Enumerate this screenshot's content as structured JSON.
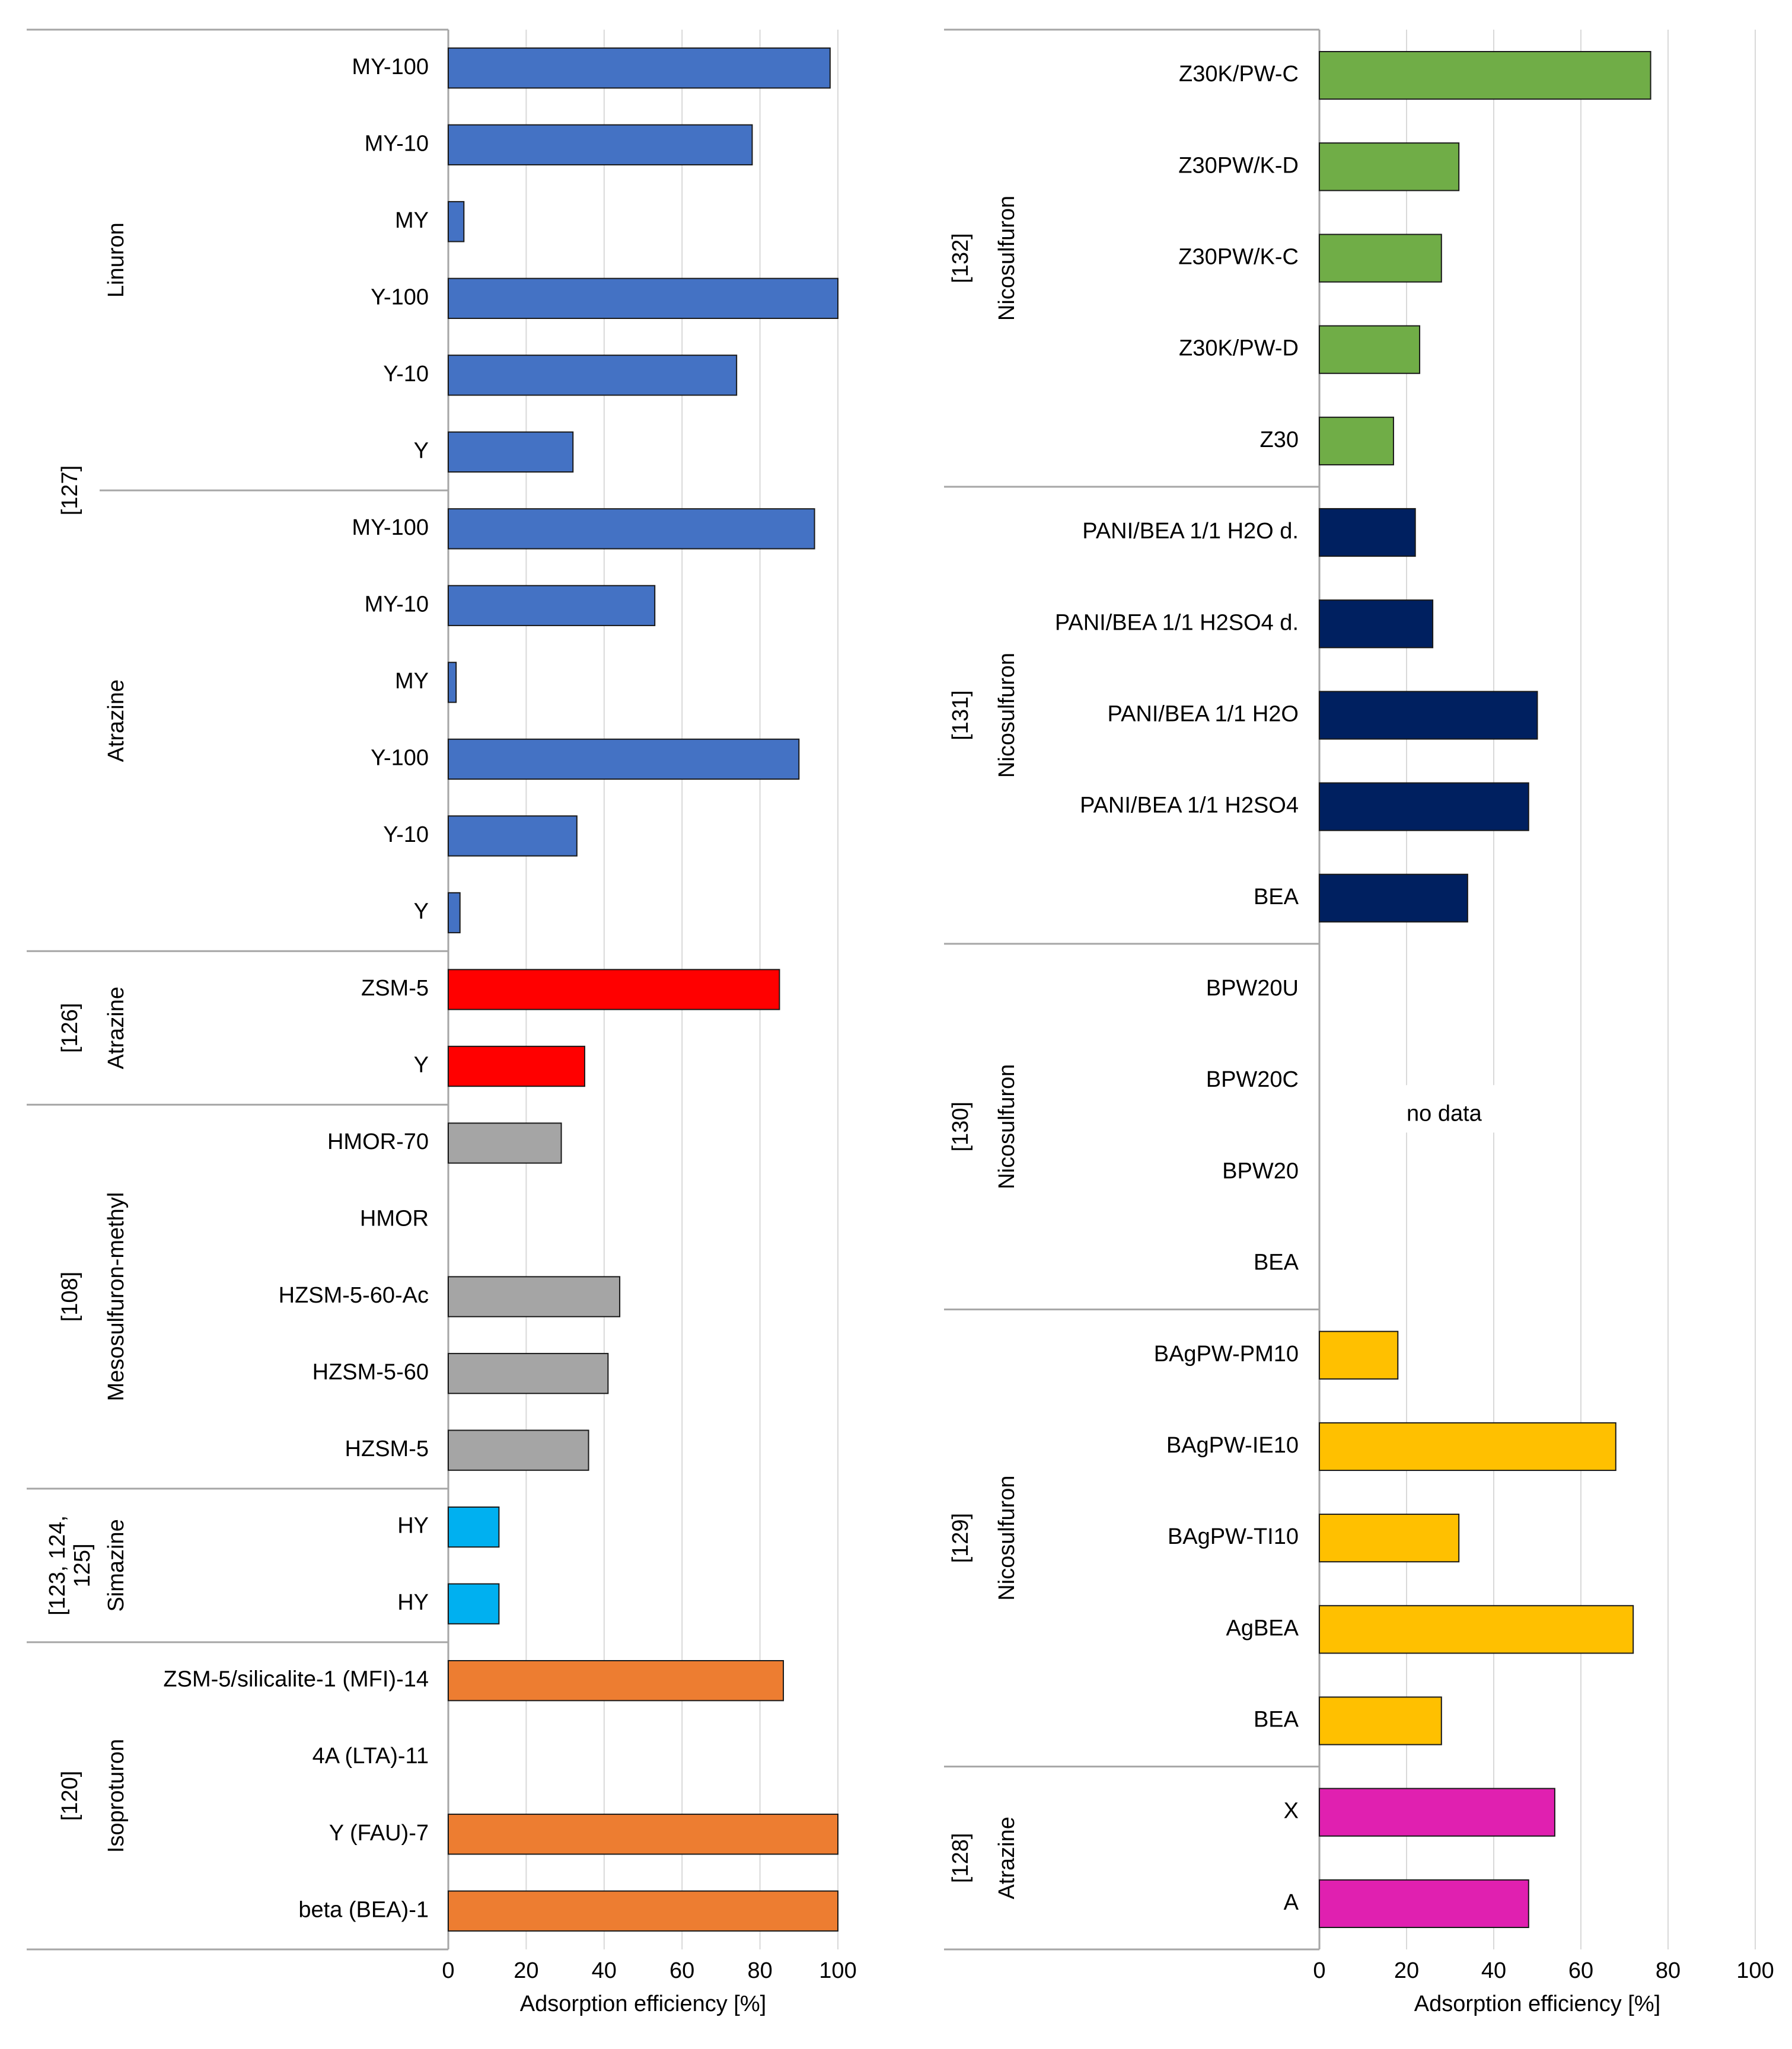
{
  "chart_data": [
    {
      "type": "bar",
      "orientation": "horizontal",
      "xlabel": "Adsorption efficiency [%]",
      "xlim": [
        0,
        100
      ],
      "xticks": [
        "0",
        "20",
        "40",
        "60",
        "80",
        "100"
      ],
      "grid": true,
      "groups": [
        {
          "reference": "[127]",
          "herbicide": "Linuron",
          "color": "#4472c4",
          "categories": [
            "MY-100",
            "MY-10",
            "MY",
            "Y-100",
            "Y-10",
            "Y"
          ],
          "values": [
            98,
            78,
            4,
            100,
            74,
            32
          ]
        },
        {
          "reference": "[127]",
          "herbicide": "Atrazine",
          "color": "#4472c4",
          "categories": [
            "MY-100",
            "MY-10",
            "MY",
            "Y-100",
            "Y-10",
            "Y"
          ],
          "values": [
            94,
            53,
            2,
            90,
            33,
            3
          ]
        },
        {
          "reference": "[126]",
          "herbicide": "Atrazine",
          "color": "#ff0000",
          "categories": [
            "ZSM-5",
            "Y"
          ],
          "values": [
            85,
            35
          ]
        },
        {
          "reference": "[108]",
          "herbicide": "Mesosulfuron-methyl",
          "color": "#a5a5a5",
          "categories": [
            "HMOR-70",
            "HMOR",
            "HZSM-5-60-Ac",
            "HZSM-5-60",
            "HZSM-5"
          ],
          "values": [
            29,
            null,
            44,
            41,
            36
          ]
        },
        {
          "reference": "[123, 124, 125]",
          "herbicide": "Simazine",
          "color": "#00b0f0",
          "categories": [
            "HY",
            "HY"
          ],
          "values": [
            13,
            13
          ]
        },
        {
          "reference": "[120]",
          "herbicide": "Isoproturon",
          "color": "#ed7d31",
          "categories": [
            "ZSM-5/silicalite-1 (MFI)-14",
            "4A (LTA)-11",
            "Y (FAU)-7",
            "beta (BEA)-1"
          ],
          "values": [
            86,
            null,
            100,
            100
          ]
        }
      ]
    },
    {
      "type": "bar",
      "orientation": "horizontal",
      "xlabel": "Adsorption efficiency [%]",
      "xlim": [
        0,
        100
      ],
      "xticks": [
        "0",
        "20",
        "40",
        "60",
        "80",
        "100"
      ],
      "grid": true,
      "groups": [
        {
          "reference": "[132]",
          "herbicide": "Nicosulfuron",
          "color": "#70ad47",
          "categories": [
            "Z30K/PW-C",
            "Z30PW/K-D",
            "Z30PW/K-C",
            "Z30K/PW-D",
            "Z30"
          ],
          "values": [
            76,
            32,
            28,
            23,
            17
          ]
        },
        {
          "reference": "[131]",
          "herbicide": "Nicosulfuron",
          "color": "#002060",
          "categories": [
            "PANI/BEA 1/1 H2O d.",
            "PANI/BEA 1/1 H2SO4 d.",
            "PANI/BEA 1/1 H2O",
            "PANI/BEA 1/1 H2SO4",
            "BEA"
          ],
          "values": [
            22,
            26,
            50,
            48,
            34
          ]
        },
        {
          "reference": "[130]",
          "herbicide": "Nicosulfuron",
          "color": "#ffffff",
          "categories": [
            "BPW20U",
            "BPW20C",
            "BPW20",
            "BEA"
          ],
          "values": [
            null,
            null,
            null,
            null
          ],
          "annotation": "no data"
        },
        {
          "reference": "[129]",
          "herbicide": "Nicosulfuron",
          "color": "#ffc000",
          "categories": [
            "BAgPW-PM10",
            "BAgPW-IE10",
            "BAgPW-TI10",
            "AgBEA",
            "BEA"
          ],
          "values": [
            18,
            68,
            32,
            72,
            28
          ]
        },
        {
          "reference": "[128]",
          "herbicide": "Atrazine",
          "color": "#e020b0",
          "categories": [
            "X",
            "A"
          ],
          "values": [
            54,
            48
          ]
        }
      ]
    }
  ]
}
